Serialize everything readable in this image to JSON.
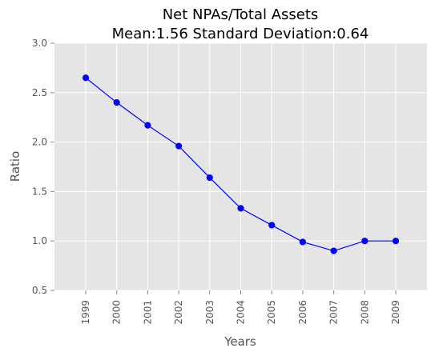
{
  "chart_data": {
    "type": "line",
    "title": "Net NPAs/Total Assets",
    "subtitle": "Mean:1.56 Standard Deviation:0.64",
    "xlabel": "Years",
    "ylabel": "Ratio",
    "ylim": [
      0.5,
      3.0
    ],
    "yticks": [
      "0.5",
      "1.0",
      "1.5",
      "2.0",
      "2.5",
      "3.0"
    ],
    "grid": true,
    "categories": [
      "1999",
      "2000",
      "2001",
      "2002",
      "2003",
      "2004",
      "2005",
      "2006",
      "2007",
      "2008",
      "2009"
    ],
    "series": [
      {
        "values": [
          2.65,
          2.4,
          2.17,
          1.96,
          1.64,
          1.33,
          1.16,
          0.99,
          0.9,
          1.0,
          1.0
        ],
        "color": "#0000ff"
      }
    ]
  },
  "colors": {
    "plot_background": "#e5e5e5",
    "grid": "#ffffff",
    "series": "#0000ff"
  }
}
